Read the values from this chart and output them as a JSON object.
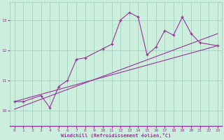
{
  "xlabel": "Windchill (Refroidissement éolien,°C)",
  "ylabel": "",
  "bg_color": "#cceedd",
  "grid_color": "#99ccbb",
  "line_color": "#993399",
  "marker_color": "#993399",
  "xlim": [
    -0.5,
    23.5
  ],
  "ylim": [
    9.5,
    13.6
  ],
  "yticks": [
    10,
    11,
    12,
    13
  ],
  "xticks": [
    0,
    1,
    2,
    3,
    4,
    5,
    6,
    7,
    8,
    9,
    10,
    11,
    12,
    13,
    14,
    15,
    16,
    17,
    18,
    19,
    20,
    21,
    22,
    23
  ],
  "x_data": [
    0,
    1,
    3,
    4,
    5,
    6,
    7,
    8,
    10,
    11,
    12,
    13,
    14,
    15,
    16,
    17,
    18,
    19,
    20,
    21,
    23
  ],
  "y_data": [
    10.3,
    10.3,
    10.5,
    10.1,
    10.8,
    11.0,
    11.7,
    11.75,
    12.05,
    12.2,
    13.0,
    13.25,
    13.1,
    11.85,
    12.1,
    12.65,
    12.5,
    13.1,
    12.55,
    12.25,
    12.15
  ],
  "trend1_x": [
    0,
    23
  ],
  "trend1_y": [
    10.3,
    12.15
  ],
  "trend2_x": [
    0,
    23
  ],
  "trend2_y": [
    10.05,
    12.55
  ],
  "figsize": [
    3.2,
    2.0
  ],
  "dpi": 100
}
